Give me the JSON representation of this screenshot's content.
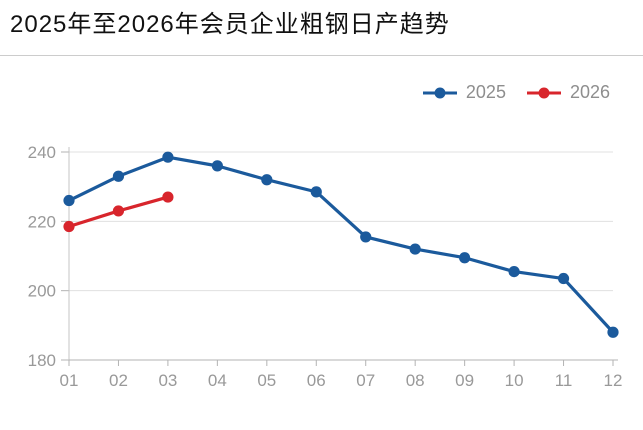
{
  "title": "2025年至2026年会员企业粗钢日产趋势",
  "colors": {
    "title_text": "#111111",
    "legend_text": "#8e8e8e",
    "axis_text": "#999999",
    "axis_line": "#b3b3b3",
    "grid_line": "#e0e0e0",
    "series_2025": "#1b5a9c",
    "series_2026": "#d8252c"
  },
  "legend": {
    "position": "top-right",
    "items": [
      "2025",
      "2026"
    ]
  },
  "chart_data": {
    "type": "line",
    "title": "2025年至2026年会员企业粗钢日产趋势",
    "categories": [
      "01",
      "02",
      "03",
      "04",
      "05",
      "06",
      "07",
      "08",
      "09",
      "10",
      "11",
      "12"
    ],
    "series": [
      {
        "name": "2025",
        "color": "#1b5a9c",
        "values": [
          226,
          233,
          238.5,
          236,
          232,
          228.5,
          215.5,
          212,
          209.5,
          205.5,
          203.5,
          188
        ]
      },
      {
        "name": "2026",
        "color": "#d8252c",
        "values": [
          218.5,
          223,
          227
        ]
      }
    ],
    "xlabel": "",
    "ylabel": "",
    "ylim": [
      180,
      240
    ],
    "yticks": [
      180,
      200,
      220,
      240
    ],
    "grid": "horizontal-only",
    "legend_position": "top-right"
  }
}
